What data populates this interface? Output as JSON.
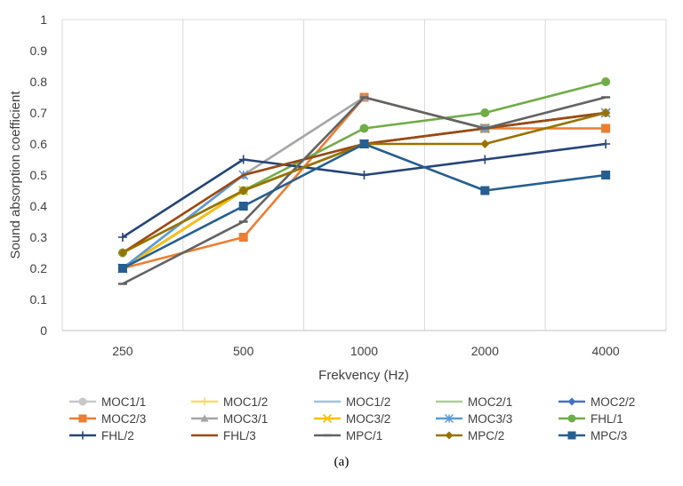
{
  "caption": "(a)",
  "chart_data": {
    "type": "line",
    "title": "",
    "xlabel": "Frekvency (Hz)",
    "ylabel": "Sound absorption coefficient",
    "categories": [
      "250",
      "500",
      "1000",
      "2000",
      "4000"
    ],
    "ylim": [
      0,
      1
    ],
    "yticks": [
      "0",
      "0.1",
      "0.2",
      "0.3",
      "0.4",
      "0.5",
      "0.6",
      "0.7",
      "0.8",
      "0.9",
      "1"
    ],
    "grid": "vertical",
    "legend": "bottom",
    "series": [
      {
        "name": "MOC1/1",
        "color": "#c8c8c8",
        "marker": "circle",
        "values": [
          0.2,
          0.45,
          0.6,
          0.65,
          0.7
        ]
      },
      {
        "name": "MOC1/2",
        "color": "#ffd966",
        "marker": "plus",
        "values": [
          0.2,
          0.45,
          0.6,
          0.65,
          0.7
        ]
      },
      {
        "name": "MOC1/2",
        "color": "#9dc3e6",
        "marker": "none",
        "values": [
          0.2,
          0.45,
          0.6,
          0.65,
          0.7
        ]
      },
      {
        "name": "MOC2/1",
        "color": "#a9d18e",
        "marker": "none",
        "values": [
          0.2,
          0.45,
          0.6,
          0.65,
          0.7
        ]
      },
      {
        "name": "MOC2/2",
        "color": "#4472c4",
        "marker": "diamond",
        "values": [
          0.2,
          0.45,
          0.6,
          0.65,
          0.7
        ]
      },
      {
        "name": "MOC2/3",
        "color": "#ed7d31",
        "marker": "square",
        "values": [
          0.2,
          0.3,
          0.75,
          0.65,
          0.65
        ]
      },
      {
        "name": "MOC3/1",
        "color": "#a5a5a5",
        "marker": "triangle",
        "values": [
          0.2,
          0.5,
          0.75,
          0.65,
          0.7
        ]
      },
      {
        "name": "MOC3/2",
        "color": "#ffc000",
        "marker": "x",
        "values": [
          0.2,
          0.45,
          0.6,
          0.65,
          0.7
        ]
      },
      {
        "name": "MOC3/3",
        "color": "#5b9bd5",
        "marker": "star",
        "values": [
          0.2,
          0.5,
          0.6,
          0.65,
          0.7
        ]
      },
      {
        "name": "FHL/1",
        "color": "#70ad47",
        "marker": "circle",
        "values": [
          0.25,
          0.45,
          0.65,
          0.7,
          0.8
        ]
      },
      {
        "name": "FHL/2",
        "color": "#264478",
        "marker": "plus",
        "values": [
          0.3,
          0.55,
          0.5,
          0.55,
          0.6
        ]
      },
      {
        "name": "FHL/3",
        "color": "#9e480e",
        "marker": "none",
        "values": [
          0.25,
          0.5,
          0.6,
          0.65,
          0.7
        ]
      },
      {
        "name": "MPC/1",
        "color": "#636363",
        "marker": "dash",
        "values": [
          0.15,
          0.35,
          0.75,
          0.65,
          0.75
        ]
      },
      {
        "name": "MPC/2",
        "color": "#997300",
        "marker": "diamond",
        "values": [
          0.25,
          0.45,
          0.6,
          0.6,
          0.7
        ]
      },
      {
        "name": "MPC/3",
        "color": "#255e91",
        "marker": "square",
        "values": [
          0.2,
          0.4,
          0.6,
          0.45,
          0.5
        ]
      }
    ]
  }
}
